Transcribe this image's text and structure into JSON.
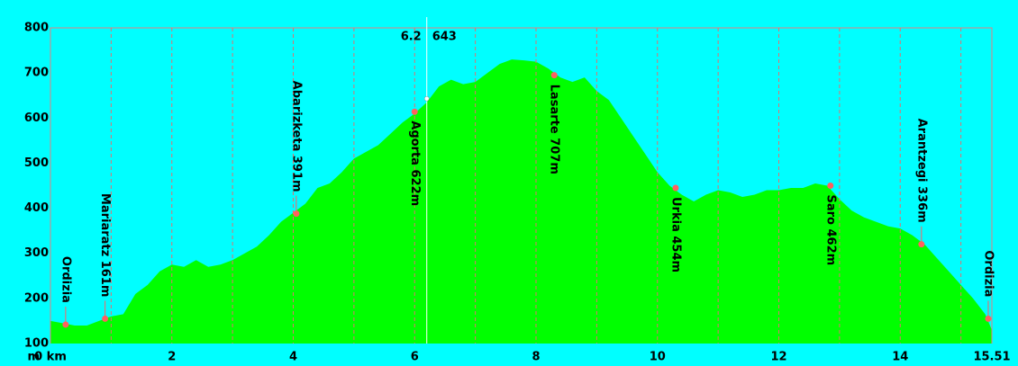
{
  "chart_data": {
    "type": "area",
    "y_label": "m",
    "x": [
      0,
      0.2,
      0.4,
      0.6,
      0.8,
      1.0,
      1.2,
      1.4,
      1.6,
      1.8,
      2.0,
      2.2,
      2.4,
      2.6,
      2.8,
      3.0,
      3.2,
      3.4,
      3.6,
      3.8,
      4.0,
      4.2,
      4.4,
      4.6,
      4.8,
      5.0,
      5.2,
      5.4,
      5.6,
      5.8,
      6.0,
      6.2,
      6.4,
      6.6,
      6.8,
      7.0,
      7.2,
      7.4,
      7.6,
      7.8,
      8.0,
      8.2,
      8.4,
      8.6,
      8.8,
      9.0,
      9.2,
      9.4,
      9.6,
      9.8,
      10.0,
      10.2,
      10.4,
      10.6,
      10.8,
      11.0,
      11.2,
      11.4,
      11.6,
      11.8,
      12.0,
      12.2,
      12.4,
      12.6,
      12.8,
      13.0,
      13.2,
      13.4,
      13.6,
      13.8,
      14.0,
      14.2,
      14.4,
      14.6,
      14.8,
      15.0,
      15.2,
      15.4,
      15.51
    ],
    "values": [
      150,
      145,
      140,
      140,
      150,
      160,
      165,
      210,
      230,
      260,
      275,
      270,
      285,
      270,
      275,
      285,
      300,
      315,
      340,
      370,
      390,
      410,
      445,
      455,
      480,
      510,
      525,
      540,
      565,
      590,
      610,
      635,
      670,
      685,
      675,
      680,
      700,
      720,
      730,
      728,
      725,
      710,
      690,
      680,
      690,
      660,
      640,
      600,
      560,
      520,
      480,
      450,
      430,
      415,
      430,
      440,
      435,
      425,
      430,
      440,
      440,
      445,
      445,
      455,
      450,
      420,
      395,
      380,
      370,
      360,
      355,
      340,
      320,
      290,
      260,
      230,
      200,
      165,
      130
    ],
    "color": "#00ff00",
    "waypoints": [
      {
        "label": "Ordizia",
        "x": 0.25,
        "y": 142
      },
      {
        "label": "Mariaratz 161m",
        "x": 0.9,
        "y": 155
      },
      {
        "label": "Abarizketa 391m",
        "x": 4.05,
        "y": 388
      },
      {
        "label": "Agorta 622m",
        "x": 6.0,
        "y": 614
      },
      {
        "label": "Lasarte 707m",
        "x": 8.3,
        "y": 695
      },
      {
        "label": "Urkia 454m",
        "x": 10.3,
        "y": 445
      },
      {
        "label": "Saro 462m",
        "x": 12.85,
        "y": 450
      },
      {
        "label": "Arantzegi 336m",
        "x": 14.35,
        "y": 320
      },
      {
        "label": "Ordizia",
        "x": 15.45,
        "y": 155
      }
    ],
    "cursor": {
      "x": 6.2,
      "y": 643
    },
    "xlim": [
      0,
      15.51
    ],
    "ylim": [
      100,
      800
    ],
    "xticks": [
      {
        "value": 0,
        "label": "0 km"
      },
      2,
      4,
      6,
      8,
      10,
      12,
      14,
      15.51
    ],
    "yticks": [
      100,
      200,
      300,
      400,
      500,
      600,
      700,
      800
    ],
    "xgrid": [
      1,
      2,
      3,
      4,
      5,
      6,
      7,
      8,
      9,
      10,
      11,
      12,
      13,
      14,
      15
    ]
  }
}
